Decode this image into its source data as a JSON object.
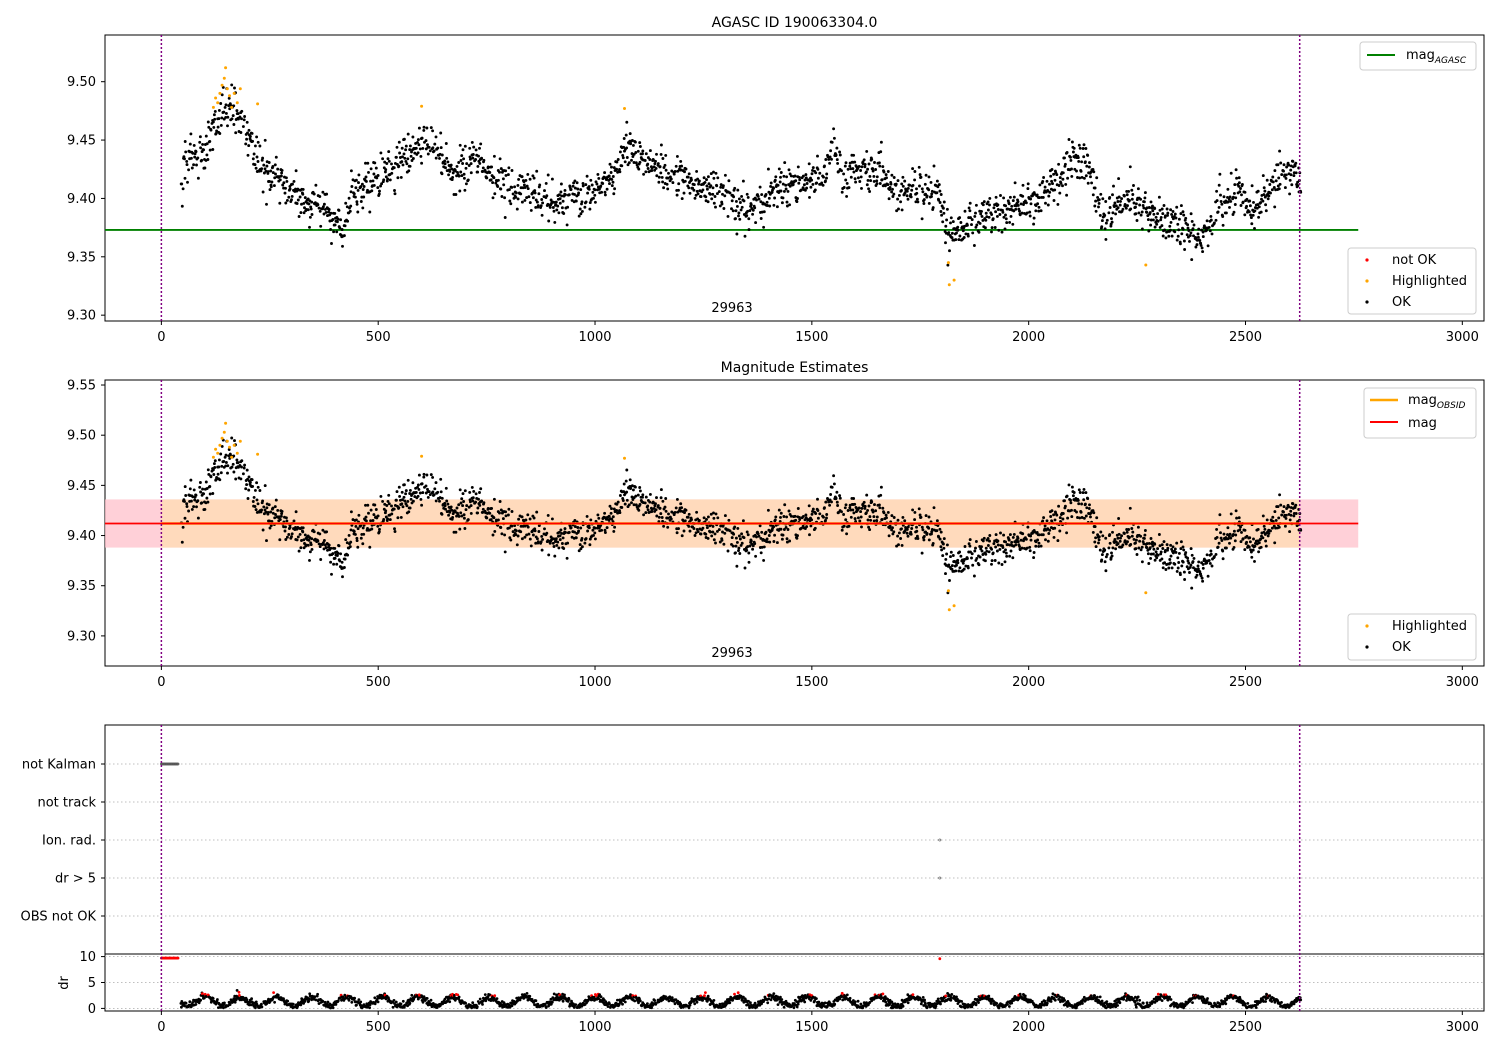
{
  "figure": {
    "title_top": "AGASC ID 190063304.0",
    "title_middle": "Magnitude Estimates",
    "obsid_label": "29963"
  },
  "legend_top_line": {
    "main": "mag",
    "sub": "AGASC"
  },
  "legend_top_points": [
    "not OK",
    "Highlighted",
    "OK"
  ],
  "legend_mid_line": [
    {
      "main": "mag",
      "sub": "OBSID"
    },
    {
      "main": "mag",
      "sub": ""
    }
  ],
  "legend_mid_points": [
    "Highlighted",
    "OK"
  ],
  "colors": {
    "ok": "#000000",
    "highlighted": "#ffa500",
    "not_ok": "#ff0000",
    "agasc_line": "#008000",
    "mag_line": "#ff0000",
    "obsid_line": "#ffa500",
    "band_outer": "#ffc0cb",
    "band_inner": "#ffdab9",
    "obs_boundary": "#800080"
  },
  "chart_data": [
    {
      "type": "scatter",
      "title": "AGASC ID 190063304.0",
      "xlim": [
        -130,
        3050
      ],
      "ylim": [
        9.295,
        9.54
      ],
      "xticks": [
        0,
        500,
        1000,
        1500,
        2000,
        2500,
        3000
      ],
      "yticks": [
        9.3,
        9.35,
        9.4,
        9.45,
        9.5
      ],
      "ytick_labels": [
        "9.30",
        "9.35",
        "9.40",
        "9.45",
        "9.50"
      ],
      "mag_agasc": 9.373,
      "obs_boundaries": [
        0,
        2625
      ],
      "obsid_annotation": {
        "x": 1315,
        "text": "29963"
      },
      "series": [
        {
          "name": "not OK",
          "values": []
        },
        {
          "name": "Highlighted",
          "values": [
            [
              120,
              9.478
            ],
            [
              125,
              9.486
            ],
            [
              130,
              9.482
            ],
            [
              135,
              9.49
            ],
            [
              140,
              9.497
            ],
            [
              145,
              9.503
            ],
            [
              148,
              9.512
            ],
            [
              152,
              9.494
            ],
            [
              157,
              9.488
            ],
            [
              162,
              9.478
            ],
            [
              168,
              9.49
            ],
            [
              175,
              9.482
            ],
            [
              182,
              9.494
            ],
            [
              222,
              9.481
            ],
            [
              600,
              9.479
            ],
            [
              1068,
              9.477
            ],
            [
              1815,
              9.345
            ],
            [
              1817,
              9.326
            ],
            [
              1828,
              9.33
            ],
            [
              2270,
              9.343
            ]
          ]
        },
        {
          "name": "OK",
          "description": "~2400 time samples, visually dense",
          "values": []
        }
      ],
      "legend_position": "upper right / lower right"
    },
    {
      "type": "scatter",
      "title": "Magnitude Estimates",
      "xlim": [
        -130,
        3050
      ],
      "ylim": [
        9.27,
        9.555
      ],
      "xticks": [
        0,
        500,
        1000,
        1500,
        2000,
        2500,
        3000
      ],
      "yticks": [
        9.3,
        9.35,
        9.4,
        9.45,
        9.5,
        9.55
      ],
      "ytick_labels": [
        "9.30",
        "9.35",
        "9.40",
        "9.45",
        "9.50",
        "9.55"
      ],
      "mag": 9.412,
      "mag_obsid": 9.412,
      "band_outer": [
        9.388,
        9.436
      ],
      "band_inner": [
        9.388,
        9.436
      ],
      "band_x": [
        -130,
        2760
      ],
      "obs_boundaries": [
        0,
        2625
      ],
      "obsid_annotation": {
        "x": 1315,
        "text": "29963"
      }
    },
    {
      "type": "scatter",
      "title": "",
      "categories": [
        "not Kalman",
        "not track",
        "Ion. rad.",
        "dr > 5",
        "OBS not OK"
      ],
      "xlim": [
        -130,
        3050
      ],
      "flag_points": {
        "not Kalman": [
          [
            0,
            40
          ]
        ],
        "Ion. rad.": [
          [
            1795,
            1795
          ]
        ],
        "dr > 5": [
          [
            1795,
            1795
          ]
        ]
      },
      "dr_ylim": [
        -0.5,
        10.5
      ],
      "dr_yticks": [
        0,
        5,
        10
      ],
      "dr_ylabel": "dr",
      "dr_threshold": 5
    }
  ]
}
